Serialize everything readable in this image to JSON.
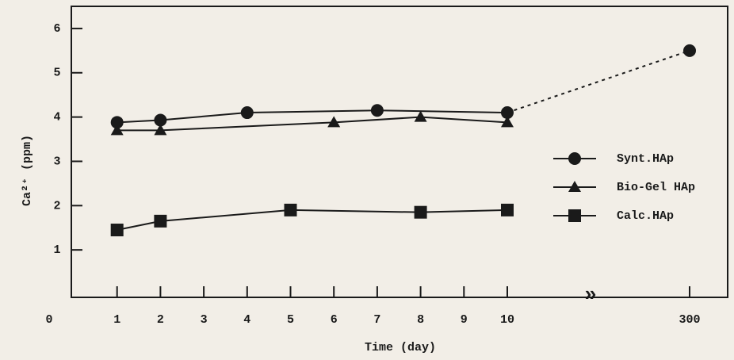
{
  "chart_data": {
    "type": "line",
    "x_label": "Time (day)",
    "y_label": "Ca²⁺ (ppm)",
    "xticks": [
      0,
      1,
      2,
      3,
      4,
      5,
      6,
      7,
      8,
      9,
      10,
      300
    ],
    "ylim": [
      0,
      6.5
    ],
    "yticks": [
      1,
      2,
      3,
      4,
      5,
      6
    ],
    "legend": "right",
    "series": [
      {
        "name": "Synt.HAp",
        "color": "#1a1a1a",
        "marker": "circle",
        "x": [
          1,
          2,
          4,
          7,
          10,
          300
        ],
        "values": [
          3.88,
          3.93,
          4.1,
          4.15,
          4.1,
          5.5
        ]
      },
      {
        "name": "Bio-Gel HAp",
        "color": "#1a1a1a",
        "marker": "triangle",
        "x": [
          1,
          2,
          6,
          8,
          10
        ],
        "values": [
          3.7,
          3.7,
          3.88,
          4.0,
          3.88
        ]
      },
      {
        "name": "Calc.HAp",
        "color": "#1a1a1a",
        "marker": "square",
        "x": [
          1,
          2,
          5,
          8,
          10
        ],
        "values": [
          1.45,
          1.65,
          1.9,
          1.85,
          1.9
        ]
      }
    ]
  }
}
